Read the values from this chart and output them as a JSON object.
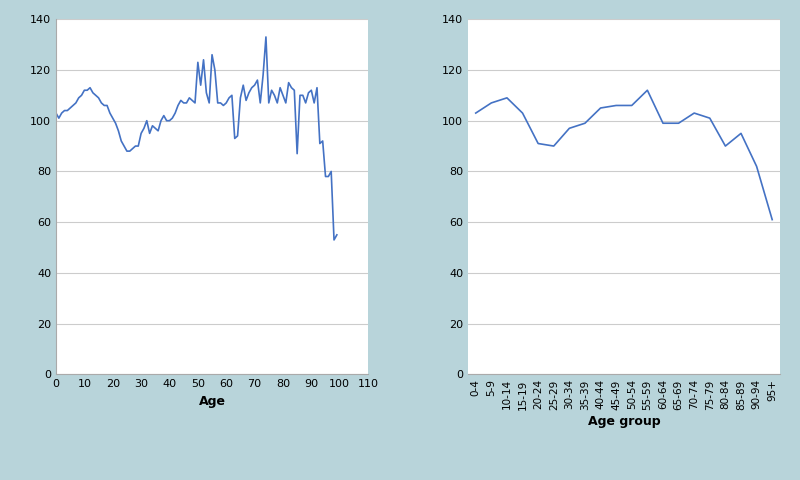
{
  "background_color": "#b8d4da",
  "plot_bg_color": "#ffffff",
  "line_color": "#4472c4",
  "line_width": 1.2,
  "ylim": [
    0,
    140
  ],
  "yticks": [
    0,
    20,
    40,
    60,
    80,
    100,
    120,
    140
  ],
  "left_xlabel": "Age",
  "right_xlabel": "Age group",
  "left_xlim": [
    0,
    110
  ],
  "left_xticks": [
    0,
    10,
    20,
    30,
    40,
    50,
    60,
    70,
    80,
    90,
    100,
    110
  ],
  "single_ages": [
    0,
    1,
    2,
    3,
    4,
    5,
    6,
    7,
    8,
    9,
    10,
    11,
    12,
    13,
    14,
    15,
    16,
    17,
    18,
    19,
    20,
    21,
    22,
    23,
    24,
    25,
    26,
    27,
    28,
    29,
    30,
    31,
    32,
    33,
    34,
    35,
    36,
    37,
    38,
    39,
    40,
    41,
    42,
    43,
    44,
    45,
    46,
    47,
    48,
    49,
    50,
    51,
    52,
    53,
    54,
    55,
    56,
    57,
    58,
    59,
    60,
    61,
    62,
    63,
    64,
    65,
    66,
    67,
    68,
    69,
    70,
    71,
    72,
    73,
    74,
    75,
    76,
    77,
    78,
    79,
    80,
    81,
    82,
    83,
    84,
    85,
    86,
    87,
    88,
    89,
    90,
    91,
    92,
    93,
    94,
    95,
    96,
    97,
    98,
    99
  ],
  "single_values": [
    103,
    101,
    103,
    104,
    104,
    105,
    106,
    107,
    109,
    110,
    112,
    112,
    113,
    111,
    110,
    109,
    107,
    106,
    106,
    103,
    101,
    99,
    96,
    92,
    90,
    88,
    88,
    89,
    90,
    90,
    95,
    97,
    100,
    95,
    98,
    97,
    96,
    100,
    102,
    100,
    100,
    101,
    103,
    106,
    108,
    107,
    107,
    109,
    108,
    107,
    123,
    114,
    124,
    111,
    107,
    126,
    120,
    107,
    107,
    106,
    107,
    109,
    110,
    93,
    94,
    109,
    114,
    108,
    111,
    113,
    114,
    116,
    107,
    118,
    133,
    107,
    112,
    110,
    107,
    113,
    110,
    107,
    115,
    113,
    112,
    87,
    110,
    110,
    107,
    111,
    112,
    107,
    113,
    91,
    92,
    78,
    78,
    80,
    53,
    55
  ],
  "grouped_labels": [
    "0-4",
    "5-9",
    "10-14",
    "15-19",
    "20-24",
    "25-29",
    "30-34",
    "35-39",
    "40-44",
    "45-49",
    "50-54",
    "55-59",
    "60-64",
    "65-69",
    "70-74",
    "75-79",
    "80-84",
    "85-89",
    "90-94",
    "95+"
  ],
  "grouped_values": [
    103,
    107,
    109,
    103,
    91,
    90,
    97,
    99,
    105,
    106,
    106,
    112,
    99,
    99,
    103,
    101,
    90,
    95,
    82,
    61
  ]
}
